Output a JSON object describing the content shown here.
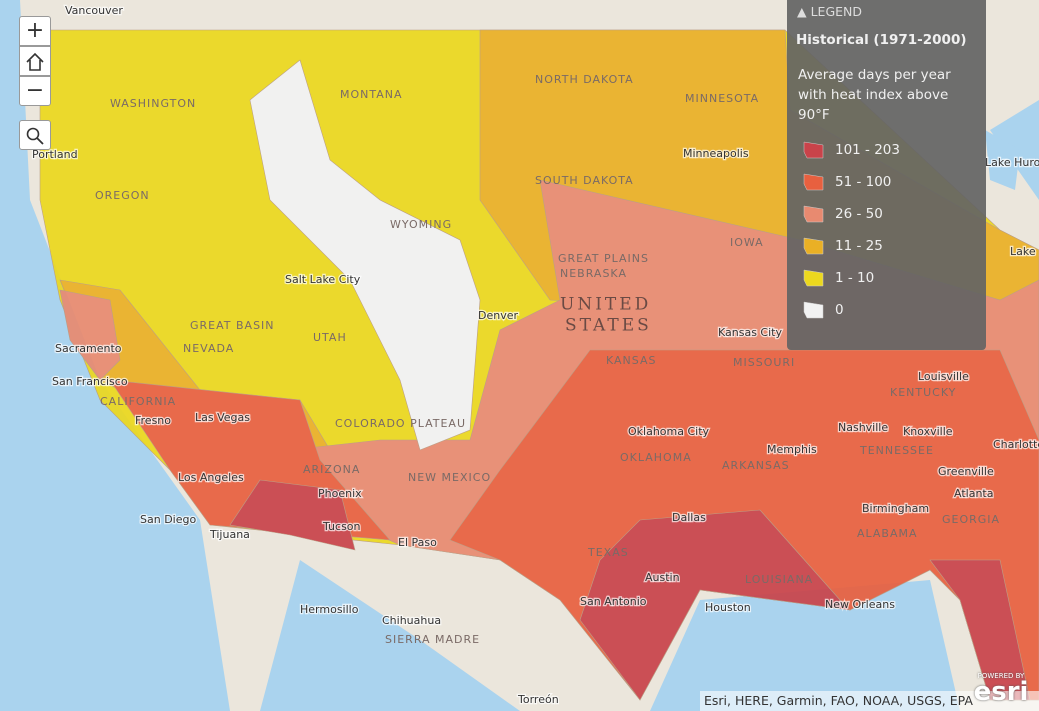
{
  "controls": {
    "zoom_in": "+",
    "zoom_out": "−"
  },
  "legend": {
    "header": "LEGEND",
    "layer_title": "Historical (1971-2000)",
    "description": [
      "Average days per year",
      "with heat index above",
      "90°F"
    ],
    "classes": [
      {
        "label": "101 - 203",
        "color": "#c9434a"
      },
      {
        "label": "51 - 100",
        "color": "#e8603f"
      },
      {
        "label": "26 - 50",
        "color": "#e88a70"
      },
      {
        "label": "11 - 25",
        "color": "#eab025"
      },
      {
        "label": "1 - 10",
        "color": "#ecd81e"
      },
      {
        "label": "0",
        "color": "#f2f2f2"
      }
    ]
  },
  "map": {
    "labels": [
      "Vancouver",
      "Portland",
      "WASHINGTON",
      "OREGON",
      "MONTANA",
      "NORTH DAKOTA",
      "MINNESOTA",
      "Minneapolis",
      "SOUTH DAKOTA",
      "WYOMING",
      "Salt Lake City",
      "NEVADA",
      "GREAT BASIN",
      "UTAH",
      "Sacramento",
      "San Francisco",
      "CALIFORNIA",
      "Fresno",
      "Las Vegas",
      "Los Angeles",
      "San Diego",
      "Tijuana",
      "ARIZONA",
      "Phoenix",
      "Tucson",
      "COLORADO PLATEAU",
      "NEW MEXICO",
      "Denver",
      "GREAT PLAINS",
      "NEBRASKA",
      "IOWA",
      "UNITED",
      "STATES",
      "KANSAS",
      "Kansas City",
      "MISSOURI",
      "Oklahoma City",
      "OKLAHOMA",
      "ARKANSAS",
      "Memphis",
      "Nashville",
      "TENNESSEE",
      "Knoxville",
      "Louisville",
      "KENTUCKY",
      "Dallas",
      "TEXAS",
      "El Paso",
      "Austin",
      "San Antonio",
      "Houston",
      "LOUISIANA",
      "New Orleans",
      "Birmingham",
      "ALABAMA",
      "GEORGIA",
      "Atlanta",
      "Greenville",
      "Charlotte",
      "Hermosillo",
      "Chihuahua",
      "SIERRA MADRE",
      "Torreón",
      "Lake Huron",
      "Lake Erie"
    ]
  },
  "attribution": "Esri, HERE, Garmin, FAO, NOAA, USGS, EPA",
  "logo": {
    "powered_by": "POWERED BY",
    "brand": "esri"
  }
}
